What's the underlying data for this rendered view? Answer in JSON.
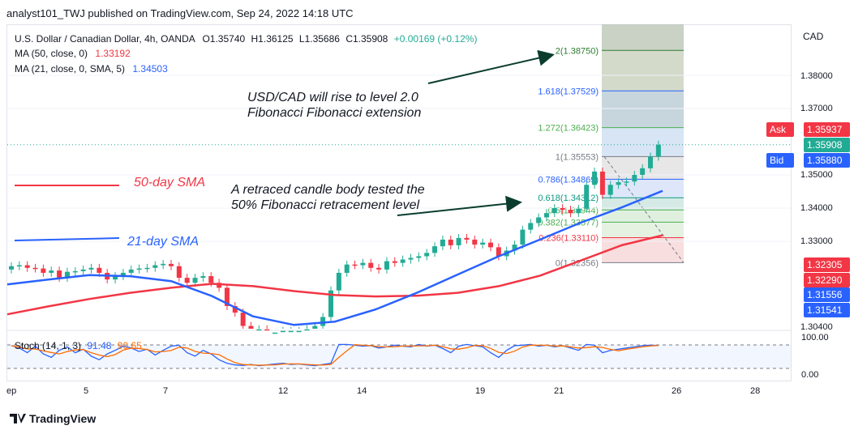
{
  "header": {
    "text": "analyst101_TWJ published on TradingView.com, Sep 24, 2022 14:18 UTC"
  },
  "legend": {
    "symbol": "U.S. Dollar / Canadian Dollar, 4h, OANDA",
    "o": "O1.35740",
    "h": "H1.36125",
    "l": "L1.35686",
    "c": "C1.35908",
    "chg": "+0.00169 (+0.12%)",
    "ma50_label": "MA (50, close, 0)",
    "ma50_val": "1.33192",
    "ma21_label": "MA (21, close, 0, SMA, 5)",
    "ma21_val": "1.34503",
    "stoch_label": "Stoch (14, 1, 3)",
    "stoch_k": "91.48",
    "stoch_d": "90.65"
  },
  "annotations": {
    "rise_line1": "USD/CAD will rise to level 2.0",
    "rise_line2": "Fibonacci Fibonacci extension",
    "retrace_line1": "A retraced candle body tested the",
    "retrace_line2": "50% Fibonacci retracement level",
    "sma50": "50-day SMA",
    "sma21": "21-day SMA"
  },
  "fib_levels": [
    {
      "label": "2(1.38750)",
      "color": "#2e7d32"
    },
    {
      "label": "1.618(1.37529)",
      "color": "#2962ff"
    },
    {
      "label": "1.272(1.36423)",
      "color": "#4caf50"
    },
    {
      "label": "1(1.35553)",
      "color": "#787b86"
    },
    {
      "label": "0.786(1.34869)",
      "color": "#2962ff"
    },
    {
      "label": "0.618(1.34312)",
      "color": "#089981"
    },
    {
      "label": "0.5(1.33944)",
      "color": "#4caf50"
    },
    {
      "label": "0.382(1.33577)",
      "color": "#4caf50"
    },
    {
      "label": "0.236(1.33110)",
      "color": "#f23645"
    },
    {
      "label": "0(1.32356)",
      "color": "#787b86"
    }
  ],
  "price_axis": {
    "currency": "CAD",
    "ticks": [
      "1.38000",
      "1.37000",
      "1.35000",
      "1.34000",
      "1.33000",
      "1.30400"
    ],
    "ask_label": "Ask",
    "ask_value": "1.35937",
    "last_value": "1.35908",
    "bid_label": "Bid",
    "bid_value": "1.35880",
    "badge1": "1.32305",
    "badge2": "1.32290",
    "badge3": "1.31556",
    "badge4": "1.31541",
    "stoch_ticks": [
      "100.00",
      "0.00"
    ]
  },
  "time_axis": {
    "ticks": [
      "ep",
      "5",
      "7",
      "12",
      "14",
      "19",
      "21",
      "26",
      "28"
    ]
  },
  "footer": {
    "brand": "TradingView"
  },
  "colors": {
    "up": "#22ab94",
    "down": "#f23645",
    "ma50": "#f23645",
    "ma21": "#2962ff",
    "stoch_k": "#2962ff",
    "stoch_d": "#ff6d00"
  },
  "chart_data": {
    "type": "candlestick",
    "title": "U.S. Dollar / Canadian Dollar, 4h, OANDA",
    "ylim": [
      1.3,
      1.39
    ],
    "candles_close": [
      1.3225,
      1.3228,
      1.322,
      1.3218,
      1.3205,
      1.3212,
      1.319,
      1.3208,
      1.321,
      1.3215,
      1.322,
      1.3205,
      1.3185,
      1.3195,
      1.3205,
      1.3215,
      1.3218,
      1.322,
      1.3228,
      1.3232,
      1.3225,
      1.319,
      1.3175,
      1.319,
      1.3195,
      1.3175,
      1.316,
      1.3105,
      1.3085,
      1.3045,
      1.303,
      1.3035,
      1.3025,
      1.3025,
      1.303,
      1.303,
      1.303,
      1.3035,
      1.3045,
      1.3072,
      1.3152,
      1.3205,
      1.323,
      1.3228,
      1.3235,
      1.322,
      1.3215,
      1.324,
      1.3235,
      1.3245,
      1.325,
      1.3255,
      1.3265,
      1.3285,
      1.3305,
      1.3288,
      1.331,
      1.3305,
      1.329,
      1.3296,
      1.3282,
      1.3255,
      1.3272,
      1.329,
      1.3335,
      1.3355,
      1.3372,
      1.3385,
      1.34,
      1.3395,
      1.3385,
      1.3398,
      1.347,
      1.351,
      1.344,
      1.347,
      1.3478,
      1.348,
      1.35,
      1.352,
      1.3555,
      1.3591
    ],
    "ma50": [
      1.308,
      1.3104,
      1.3126,
      1.3145,
      1.316,
      1.3172,
      1.3165,
      1.315,
      1.3138,
      1.3134,
      1.3136,
      1.3145,
      1.3165,
      1.3196,
      1.3242,
      1.3288,
      1.3318
    ],
    "ma21": [
      1.317,
      1.3185,
      1.3198,
      1.3195,
      1.318,
      1.3135,
      1.3074,
      1.3048,
      1.3058,
      1.3095,
      1.3145,
      1.32,
      1.3255,
      1.3305,
      1.3356,
      1.3402,
      1.3452
    ]
  }
}
